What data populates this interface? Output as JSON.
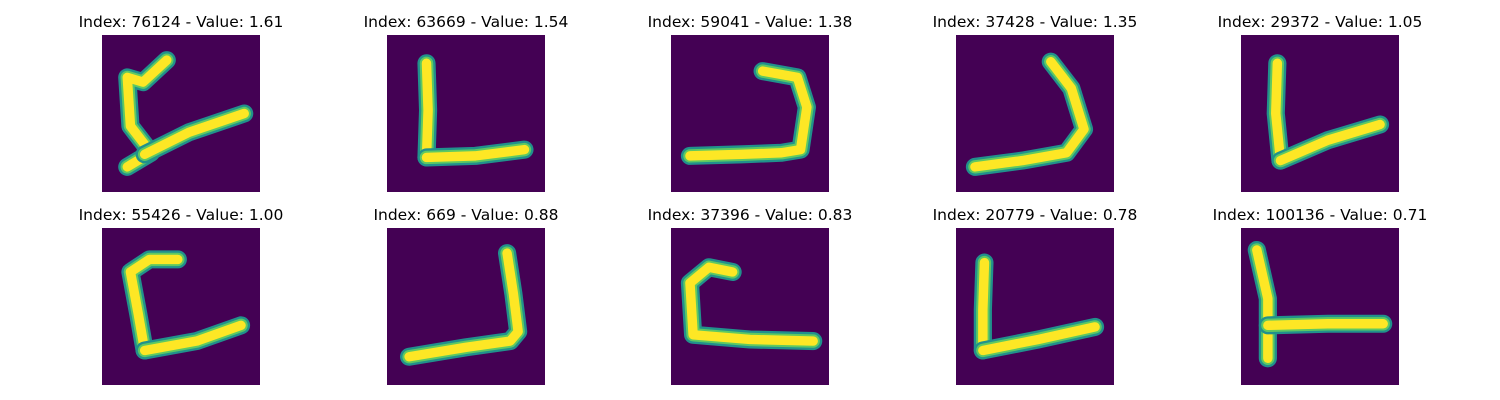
{
  "colors": {
    "background": "#440154",
    "stroke_edge": "#21918c",
    "stroke_mid": "#5ec962",
    "stroke_core": "#fde725"
  },
  "panels": [
    {
      "index": "76124",
      "value": "1.61",
      "title": "Index: 76124 - Value: 1.61",
      "strokes": [
        [
          [
            0.41,
            0.16
          ],
          [
            0.26,
            0.3
          ],
          [
            0.16,
            0.27
          ],
          [
            0.18,
            0.58
          ],
          [
            0.31,
            0.75
          ],
          [
            0.16,
            0.84
          ]
        ],
        [
          [
            0.27,
            0.76
          ],
          [
            0.55,
            0.62
          ],
          [
            0.9,
            0.5
          ]
        ]
      ]
    },
    {
      "index": "63669",
      "value": "1.54",
      "title": "Index: 63669 - Value: 1.54",
      "strokes": [
        [
          [
            0.25,
            0.18
          ],
          [
            0.26,
            0.48
          ],
          [
            0.25,
            0.78
          ]
        ],
        [
          [
            0.25,
            0.78
          ],
          [
            0.56,
            0.77
          ],
          [
            0.87,
            0.73
          ]
        ]
      ]
    },
    {
      "index": "59041",
      "value": "1.38",
      "title": "Index: 59041 - Value: 1.38",
      "strokes": [
        [
          [
            0.58,
            0.23
          ],
          [
            0.8,
            0.27
          ],
          [
            0.86,
            0.46
          ],
          [
            0.82,
            0.73
          ],
          [
            0.7,
            0.75
          ],
          [
            0.45,
            0.76
          ],
          [
            0.12,
            0.77
          ]
        ]
      ]
    },
    {
      "index": "37428",
      "value": "1.35",
      "title": "Index: 37428 - Value: 1.35",
      "strokes": [
        [
          [
            0.6,
            0.17
          ],
          [
            0.73,
            0.34
          ],
          [
            0.81,
            0.6
          ],
          [
            0.7,
            0.75
          ],
          [
            0.42,
            0.8
          ],
          [
            0.12,
            0.84
          ]
        ]
      ]
    },
    {
      "index": "29372",
      "value": "1.05",
      "title": "Index: 29372 - Value: 1.05",
      "strokes": [
        [
          [
            0.23,
            0.18
          ],
          [
            0.22,
            0.5
          ],
          [
            0.25,
            0.8
          ]
        ],
        [
          [
            0.25,
            0.8
          ],
          [
            0.55,
            0.67
          ],
          [
            0.88,
            0.57
          ]
        ]
      ]
    },
    {
      "index": "55426",
      "value": "1.00",
      "title": "Index: 55426 - Value: 1.00",
      "strokes": [
        [
          [
            0.48,
            0.2
          ],
          [
            0.3,
            0.2
          ],
          [
            0.18,
            0.28
          ],
          [
            0.23,
            0.55
          ],
          [
            0.27,
            0.78
          ]
        ],
        [
          [
            0.27,
            0.78
          ],
          [
            0.6,
            0.72
          ],
          [
            0.88,
            0.62
          ]
        ]
      ]
    },
    {
      "index": "669",
      "value": "0.88",
      "title": "Index: 669 - Value: 0.88",
      "strokes": [
        [
          [
            0.76,
            0.16
          ],
          [
            0.8,
            0.42
          ],
          [
            0.83,
            0.66
          ],
          [
            0.78,
            0.72
          ],
          [
            0.5,
            0.76
          ],
          [
            0.14,
            0.82
          ]
        ]
      ]
    },
    {
      "index": "37396",
      "value": "0.83",
      "title": "Index: 37396 - Value: 0.83",
      "strokes": [
        [
          [
            0.39,
            0.28
          ],
          [
            0.24,
            0.25
          ],
          [
            0.12,
            0.35
          ],
          [
            0.14,
            0.68
          ],
          [
            0.5,
            0.71
          ],
          [
            0.9,
            0.72
          ]
        ]
      ]
    },
    {
      "index": "20779",
      "value": "0.78",
      "title": "Index: 20779 - Value: 0.78",
      "strokes": [
        [
          [
            0.18,
            0.22
          ],
          [
            0.17,
            0.52
          ],
          [
            0.17,
            0.78
          ]
        ],
        [
          [
            0.17,
            0.78
          ],
          [
            0.52,
            0.71
          ],
          [
            0.88,
            0.63
          ]
        ]
      ]
    },
    {
      "index": "100136",
      "value": "0.71",
      "title": "Index: 100136 - Value: 0.71",
      "strokes": [
        [
          [
            0.1,
            0.14
          ],
          [
            0.17,
            0.45
          ],
          [
            0.17,
            0.83
          ]
        ],
        [
          [
            0.17,
            0.62
          ],
          [
            0.55,
            0.61
          ],
          [
            0.9,
            0.61
          ]
        ]
      ]
    }
  ]
}
